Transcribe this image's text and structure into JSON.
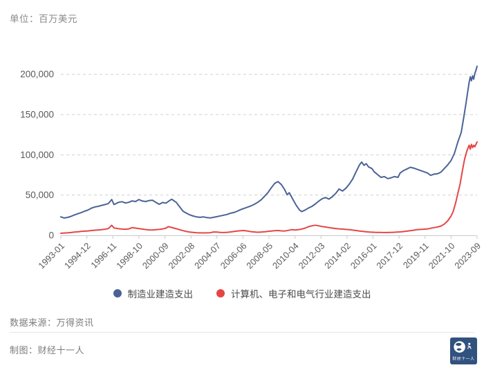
{
  "unit_label": "单位：百万美元",
  "footer": {
    "source": "数据来源：万得资讯",
    "credit": "制图：财经十一人"
  },
  "logo": {
    "text": "财经十一人",
    "bg_color": "#31517f"
  },
  "chart_data": {
    "type": "line",
    "title": "",
    "unit": "百万美元",
    "xlabel": "",
    "ylabel": "",
    "ylim": [
      0,
      215000
    ],
    "grid": "horizontal-dashed",
    "legend_position": "bottom",
    "x_axis_note": "points use month offset from 1993-01 (0 = 1993-01, 368 = 2023-09)",
    "x_range_months": 368,
    "x_ticks": [
      {
        "month": 0,
        "label": "1993-01"
      },
      {
        "month": 23,
        "label": "1994-12"
      },
      {
        "month": 46,
        "label": "1996-11"
      },
      {
        "month": 69,
        "label": "1998-10"
      },
      {
        "month": 92,
        "label": "2000-09"
      },
      {
        "month": 115,
        "label": "2002-08"
      },
      {
        "month": 138,
        "label": "2004-07"
      },
      {
        "month": 161,
        "label": "2006-06"
      },
      {
        "month": 184,
        "label": "2008-05"
      },
      {
        "month": 207,
        "label": "2010-04"
      },
      {
        "month": 230,
        "label": "2012-03"
      },
      {
        "month": 253,
        "label": "2014-02"
      },
      {
        "month": 276,
        "label": "2016-01"
      },
      {
        "month": 299,
        "label": "2017-12"
      },
      {
        "month": 322,
        "label": "2019-11"
      },
      {
        "month": 345,
        "label": "2021-10"
      },
      {
        "month": 368,
        "label": "2023-09"
      }
    ],
    "y_ticks": [
      {
        "value": 0,
        "label": "0"
      },
      {
        "value": 50000,
        "label": "50,000"
      },
      {
        "value": 100000,
        "label": "100,000"
      },
      {
        "value": 150000,
        "label": "150,000"
      },
      {
        "value": 200000,
        "label": "200,000"
      }
    ],
    "series": [
      {
        "id": "manufacturing",
        "name": "制造业建造支出",
        "color": "#4a6295",
        "points": [
          [
            0,
            23000
          ],
          [
            3,
            21500
          ],
          [
            6,
            22300
          ],
          [
            9,
            23600
          ],
          [
            12,
            25400
          ],
          [
            15,
            26800
          ],
          [
            18,
            28200
          ],
          [
            21,
            30000
          ],
          [
            24,
            31500
          ],
          [
            27,
            33800
          ],
          [
            30,
            35200
          ],
          [
            33,
            36000
          ],
          [
            36,
            37200
          ],
          [
            39,
            38200
          ],
          [
            42,
            39500
          ],
          [
            45,
            44500
          ],
          [
            47,
            38200
          ],
          [
            51,
            41000
          ],
          [
            54,
            41800
          ],
          [
            57,
            40200
          ],
          [
            60,
            41000
          ],
          [
            63,
            42800
          ],
          [
            66,
            42000
          ],
          [
            69,
            44500
          ],
          [
            72,
            42600
          ],
          [
            75,
            42000
          ],
          [
            78,
            43200
          ],
          [
            81,
            43600
          ],
          [
            84,
            41000
          ],
          [
            87,
            38600
          ],
          [
            90,
            40800
          ],
          [
            93,
            40000
          ],
          [
            96,
            43000
          ],
          [
            98,
            44800
          ],
          [
            102,
            41000
          ],
          [
            105,
            35500
          ],
          [
            108,
            30000
          ],
          [
            111,
            27500
          ],
          [
            114,
            25500
          ],
          [
            117,
            24000
          ],
          [
            120,
            23000
          ],
          [
            123,
            22400
          ],
          [
            126,
            23000
          ],
          [
            129,
            22000
          ],
          [
            132,
            21600
          ],
          [
            135,
            22400
          ],
          [
            138,
            23200
          ],
          [
            141,
            24200
          ],
          [
            144,
            25000
          ],
          [
            147,
            26000
          ],
          [
            150,
            27500
          ],
          [
            153,
            28400
          ],
          [
            156,
            30000
          ],
          [
            159,
            32000
          ],
          [
            162,
            33500
          ],
          [
            165,
            35000
          ],
          [
            168,
            36500
          ],
          [
            171,
            38500
          ],
          [
            174,
            41000
          ],
          [
            177,
            44000
          ],
          [
            180,
            48500
          ],
          [
            183,
            53000
          ],
          [
            186,
            59000
          ],
          [
            189,
            64500
          ],
          [
            192,
            66800
          ],
          [
            195,
            63000
          ],
          [
            198,
            56500
          ],
          [
            200,
            50500
          ],
          [
            202,
            53000
          ],
          [
            205,
            45000
          ],
          [
            208,
            37500
          ],
          [
            211,
            31500
          ],
          [
            213,
            29500
          ],
          [
            216,
            31500
          ],
          [
            219,
            34000
          ],
          [
            222,
            36000
          ],
          [
            225,
            39000
          ],
          [
            228,
            42500
          ],
          [
            231,
            45500
          ],
          [
            234,
            47000
          ],
          [
            237,
            45000
          ],
          [
            240,
            48000
          ],
          [
            243,
            52000
          ],
          [
            246,
            57500
          ],
          [
            249,
            55000
          ],
          [
            252,
            58500
          ],
          [
            255,
            63500
          ],
          [
            258,
            70000
          ],
          [
            261,
            79000
          ],
          [
            264,
            87500
          ],
          [
            266,
            91000
          ],
          [
            268,
            87000
          ],
          [
            270,
            89000
          ],
          [
            272,
            85000
          ],
          [
            275,
            83000
          ],
          [
            277,
            79000
          ],
          [
            280,
            75500
          ],
          [
            283,
            72000
          ],
          [
            286,
            73000
          ],
          [
            289,
            70500
          ],
          [
            292,
            71500
          ],
          [
            295,
            73000
          ],
          [
            298,
            72000
          ],
          [
            300,
            77500
          ],
          [
            303,
            80500
          ],
          [
            306,
            82500
          ],
          [
            309,
            84500
          ],
          [
            312,
            83500
          ],
          [
            315,
            82000
          ],
          [
            318,
            80500
          ],
          [
            321,
            79000
          ],
          [
            324,
            77500
          ],
          [
            327,
            74500
          ],
          [
            330,
            76000
          ],
          [
            333,
            76500
          ],
          [
            336,
            78500
          ],
          [
            339,
            83000
          ],
          [
            342,
            87500
          ],
          [
            345,
            93000
          ],
          [
            348,
            102000
          ],
          [
            351,
            116000
          ],
          [
            354,
            128000
          ],
          [
            356,
            145000
          ],
          [
            358,
            162000
          ],
          [
            360,
            181000
          ],
          [
            361,
            190000
          ],
          [
            362,
            197000
          ],
          [
            363,
            192000
          ],
          [
            364,
            198000
          ],
          [
            365,
            194000
          ],
          [
            366,
            201000
          ],
          [
            367,
            205000
          ],
          [
            368,
            210000
          ]
        ]
      },
      {
        "id": "electronics",
        "name": "计算机、电子和电气行业建造支出",
        "color": "#e54545",
        "points": [
          [
            0,
            2600
          ],
          [
            3,
            2900
          ],
          [
            6,
            3100
          ],
          [
            9,
            3500
          ],
          [
            12,
            4000
          ],
          [
            15,
            4400
          ],
          [
            18,
            4900
          ],
          [
            21,
            5200
          ],
          [
            24,
            5500
          ],
          [
            27,
            6000
          ],
          [
            30,
            6400
          ],
          [
            33,
            6700
          ],
          [
            36,
            7000
          ],
          [
            39,
            7600
          ],
          [
            42,
            8400
          ],
          [
            45,
            12500
          ],
          [
            47,
            9200
          ],
          [
            51,
            8200
          ],
          [
            54,
            7800
          ],
          [
            57,
            7600
          ],
          [
            60,
            8000
          ],
          [
            63,
            9600
          ],
          [
            66,
            9000
          ],
          [
            69,
            8400
          ],
          [
            72,
            7800
          ],
          [
            75,
            7200
          ],
          [
            78,
            6800
          ],
          [
            81,
            6600
          ],
          [
            84,
            7000
          ],
          [
            87,
            7400
          ],
          [
            90,
            8000
          ],
          [
            93,
            9000
          ],
          [
            95,
            10800
          ],
          [
            98,
            9800
          ],
          [
            102,
            8200
          ],
          [
            105,
            7000
          ],
          [
            108,
            5800
          ],
          [
            111,
            4800
          ],
          [
            114,
            4000
          ],
          [
            117,
            3600
          ],
          [
            120,
            3300
          ],
          [
            123,
            3100
          ],
          [
            126,
            3000
          ],
          [
            129,
            3100
          ],
          [
            132,
            3300
          ],
          [
            135,
            4200
          ],
          [
            138,
            4000
          ],
          [
            141,
            3700
          ],
          [
            144,
            3500
          ],
          [
            147,
            3800
          ],
          [
            150,
            4200
          ],
          [
            153,
            4800
          ],
          [
            156,
            5400
          ],
          [
            159,
            5800
          ],
          [
            162,
            6000
          ],
          [
            165,
            5400
          ],
          [
            168,
            4600
          ],
          [
            171,
            4200
          ],
          [
            174,
            3900
          ],
          [
            177,
            4100
          ],
          [
            180,
            4400
          ],
          [
            183,
            5000
          ],
          [
            186,
            5400
          ],
          [
            189,
            5800
          ],
          [
            192,
            6000
          ],
          [
            195,
            5600
          ],
          [
            198,
            5400
          ],
          [
            201,
            6200
          ],
          [
            204,
            7000
          ],
          [
            207,
            6600
          ],
          [
            210,
            7000
          ],
          [
            213,
            7800
          ],
          [
            216,
            9000
          ],
          [
            219,
            10800
          ],
          [
            222,
            11800
          ],
          [
            225,
            12600
          ],
          [
            228,
            11800
          ],
          [
            231,
            11000
          ],
          [
            234,
            10400
          ],
          [
            237,
            9600
          ],
          [
            240,
            9000
          ],
          [
            243,
            8500
          ],
          [
            246,
            8100
          ],
          [
            249,
            7800
          ],
          [
            252,
            7400
          ],
          [
            255,
            7000
          ],
          [
            258,
            6500
          ],
          [
            261,
            6000
          ],
          [
            264,
            5400
          ],
          [
            267,
            4900
          ],
          [
            270,
            4400
          ],
          [
            273,
            4100
          ],
          [
            276,
            3900
          ],
          [
            279,
            3700
          ],
          [
            282,
            3600
          ],
          [
            285,
            3500
          ],
          [
            288,
            3500
          ],
          [
            291,
            3600
          ],
          [
            294,
            3800
          ],
          [
            297,
            4000
          ],
          [
            300,
            4300
          ],
          [
            303,
            4700
          ],
          [
            306,
            5200
          ],
          [
            309,
            5800
          ],
          [
            312,
            6400
          ],
          [
            315,
            7000
          ],
          [
            318,
            7400
          ],
          [
            321,
            7600
          ],
          [
            324,
            7900
          ],
          [
            327,
            8800
          ],
          [
            330,
            9600
          ],
          [
            333,
            10400
          ],
          [
            336,
            11500
          ],
          [
            339,
            14000
          ],
          [
            342,
            18000
          ],
          [
            345,
            24000
          ],
          [
            347,
            30000
          ],
          [
            349,
            40000
          ],
          [
            351,
            52000
          ],
          [
            353,
            64000
          ],
          [
            355,
            80000
          ],
          [
            357,
            95000
          ],
          [
            359,
            105000
          ],
          [
            361,
            112000
          ],
          [
            362,
            107000
          ],
          [
            363,
            113000
          ],
          [
            364,
            109000
          ],
          [
            365,
            112000
          ],
          [
            366,
            110000
          ],
          [
            367,
            113000
          ],
          [
            368,
            116000
          ]
        ]
      }
    ]
  }
}
